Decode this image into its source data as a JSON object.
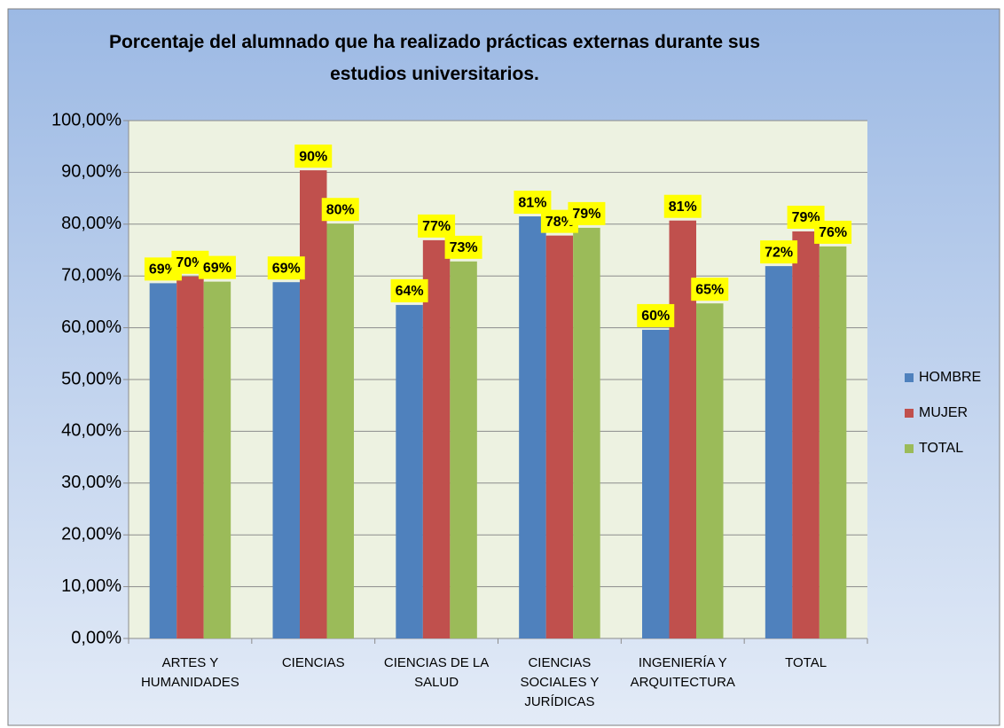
{
  "chart_data": {
    "type": "bar",
    "title": "Porcentaje del alumnado que ha realizado prácticas externas durante sus estudios universitarios.",
    "categories": [
      "ARTES Y HUMANIDADES",
      "CIENCIAS",
      "CIENCIAS DE LA SALUD",
      "CIENCIAS SOCIALES Y JURÍDICAS",
      "INGENIERÍA Y ARQUITECTURA",
      "TOTAL"
    ],
    "series": [
      {
        "name": "HOMBRE",
        "color": "#4f81bd",
        "values": [
          68.6,
          68.8,
          64.4,
          81.5,
          59.6,
          71.9
        ],
        "value_labels": [
          "69%",
          "69%",
          "64%",
          "81%",
          "60%",
          "72%"
        ]
      },
      {
        "name": "MUJER",
        "color": "#c0504d",
        "values": [
          69.9,
          90.4,
          76.9,
          77.8,
          80.7,
          78.6
        ],
        "value_labels": [
          "70%",
          "90%",
          "77%",
          "78%",
          "81%",
          "79%"
        ]
      },
      {
        "name": "TOTAL",
        "color": "#9bbb59",
        "values": [
          68.9,
          80.1,
          72.8,
          79.3,
          64.7,
          75.7
        ],
        "value_labels": [
          "69%",
          "80%",
          "73%",
          "79%",
          "65%",
          "76%"
        ]
      }
    ],
    "ylim": [
      0,
      100
    ],
    "yticks": [
      {
        "value": 0,
        "label": "0,00%"
      },
      {
        "value": 10,
        "label": "10,00%"
      },
      {
        "value": 20,
        "label": "20,00%"
      },
      {
        "value": 30,
        "label": "30,00%"
      },
      {
        "value": 40,
        "label": "40,00%"
      },
      {
        "value": 50,
        "label": "50,00%"
      },
      {
        "value": 60,
        "label": "60,00%"
      },
      {
        "value": 70,
        "label": "70,00%"
      },
      {
        "value": 80,
        "label": "80,00%"
      },
      {
        "value": 90,
        "label": "90,00%"
      },
      {
        "value": 100,
        "label": "100,00%"
      }
    ],
    "grid": true,
    "legend": "right"
  }
}
